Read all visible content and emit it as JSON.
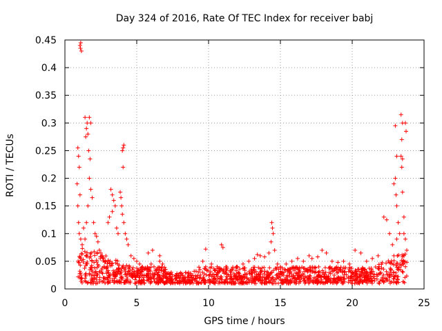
{
  "chart_data": {
    "type": "scatter",
    "title": "Day 324 of 2016, Rate Of TEC Index for receiver babj",
    "xlabel": "GPS time / hours",
    "ylabel": "ROTI / TECUs",
    "xlim": [
      0,
      25
    ],
    "ylim": [
      0,
      0.45
    ],
    "xticks": [
      0,
      5,
      10,
      15,
      20,
      25
    ],
    "xtick_labels": [
      "0",
      "5",
      "10",
      "15",
      "20",
      "25"
    ],
    "yticks": [
      0,
      0.05,
      0.1,
      0.15,
      0.2,
      0.25,
      0.3,
      0.35,
      0.4,
      0.45
    ],
    "ytick_labels": [
      "0",
      "0.05",
      "0.1",
      "0.15",
      "0.2",
      "0.25",
      "0.3",
      "0.35",
      "0.4",
      "0.45"
    ],
    "grid": true,
    "marker": "+",
    "color": "#ff0000",
    "series": [
      {
        "name": "ROTI",
        "points": [
          [
            1.05,
            0.44
          ],
          [
            1.08,
            0.435
          ],
          [
            1.1,
            0.445
          ],
          [
            1.15,
            0.43
          ],
          [
            0.9,
            0.255
          ],
          [
            0.95,
            0.24
          ],
          [
            0.85,
            0.19
          ],
          [
            0.9,
            0.15
          ],
          [
            0.95,
            0.12
          ],
          [
            1.0,
            0.1
          ],
          [
            1.1,
            0.09
          ],
          [
            1.2,
            0.08
          ],
          [
            1.0,
            0.22
          ],
          [
            1.05,
            0.17
          ],
          [
            1.4,
            0.31
          ],
          [
            1.5,
            0.29
          ],
          [
            1.55,
            0.3
          ],
          [
            1.6,
            0.28
          ],
          [
            1.45,
            0.275
          ],
          [
            1.65,
            0.25
          ],
          [
            1.7,
            0.31
          ],
          [
            1.75,
            0.235
          ],
          [
            1.8,
            0.3
          ],
          [
            1.7,
            0.2
          ],
          [
            1.8,
            0.18
          ],
          [
            1.9,
            0.165
          ],
          [
            1.6,
            0.15
          ],
          [
            1.5,
            0.12
          ],
          [
            1.3,
            0.11
          ],
          [
            1.4,
            0.09
          ],
          [
            2.0,
            0.12
          ],
          [
            2.1,
            0.1
          ],
          [
            2.2,
            0.095
          ],
          [
            2.3,
            0.085
          ],
          [
            2.4,
            0.07
          ],
          [
            2.5,
            0.065
          ],
          [
            2.6,
            0.06
          ],
          [
            2.7,
            0.055
          ],
          [
            2.8,
            0.05
          ],
          [
            3.2,
            0.18
          ],
          [
            3.3,
            0.17
          ],
          [
            3.4,
            0.16
          ],
          [
            3.5,
            0.15
          ],
          [
            3.3,
            0.14
          ],
          [
            3.1,
            0.13
          ],
          [
            3.0,
            0.12
          ],
          [
            3.6,
            0.11
          ],
          [
            3.7,
            0.1
          ],
          [
            3.85,
            0.175
          ],
          [
            3.9,
            0.165
          ],
          [
            3.95,
            0.15
          ],
          [
            4.0,
            0.135
          ],
          [
            4.1,
            0.12
          ],
          [
            4.05,
            0.255
          ],
          [
            4.0,
            0.25
          ],
          [
            4.1,
            0.26
          ],
          [
            4.05,
            0.22
          ],
          [
            4.2,
            0.1
          ],
          [
            4.3,
            0.09
          ],
          [
            4.4,
            0.08
          ],
          [
            4.6,
            0.06
          ],
          [
            4.8,
            0.055
          ],
          [
            5.0,
            0.05
          ],
          [
            5.2,
            0.045
          ],
          [
            5.4,
            0.04
          ],
          [
            5.6,
            0.038
          ],
          [
            5.8,
            0.035
          ],
          [
            6.0,
            0.045
          ],
          [
            6.2,
            0.04
          ],
          [
            6.4,
            0.035
          ],
          [
            6.6,
            0.05
          ],
          [
            6.8,
            0.045
          ],
          [
            7.0,
            0.035
          ],
          [
            5.8,
            0.065
          ],
          [
            6.1,
            0.07
          ],
          [
            6.6,
            0.06
          ],
          [
            7.4,
            0.03
          ],
          [
            7.8,
            0.028
          ],
          [
            8.2,
            0.025
          ],
          [
            8.6,
            0.03
          ],
          [
            9.0,
            0.032
          ],
          [
            9.4,
            0.035
          ],
          [
            9.8,
            0.04
          ],
          [
            9.6,
            0.05
          ],
          [
            9.8,
            0.072
          ],
          [
            10.2,
            0.045
          ],
          [
            10.6,
            0.04
          ],
          [
            10.9,
            0.08
          ],
          [
            11.0,
            0.075
          ],
          [
            11.2,
            0.04
          ],
          [
            11.6,
            0.035
          ],
          [
            12.0,
            0.04
          ],
          [
            12.4,
            0.045
          ],
          [
            12.8,
            0.05
          ],
          [
            13.2,
            0.055
          ],
          [
            13.6,
            0.06
          ],
          [
            13.4,
            0.062
          ],
          [
            13.9,
            0.058
          ],
          [
            14.2,
            0.065
          ],
          [
            14.4,
            0.12
          ],
          [
            14.45,
            0.11
          ],
          [
            14.5,
            0.1
          ],
          [
            14.35,
            0.085
          ],
          [
            14.6,
            0.07
          ],
          [
            14.8,
            0.045
          ],
          [
            15.0,
            0.04
          ],
          [
            15.4,
            0.045
          ],
          [
            15.8,
            0.05
          ],
          [
            16.2,
            0.055
          ],
          [
            16.6,
            0.05
          ],
          [
            17.0,
            0.06
          ],
          [
            17.2,
            0.055
          ],
          [
            17.6,
            0.058
          ],
          [
            17.9,
            0.07
          ],
          [
            18.2,
            0.065
          ],
          [
            18.6,
            0.05
          ],
          [
            19.0,
            0.048
          ],
          [
            19.4,
            0.05
          ],
          [
            19.8,
            0.045
          ],
          [
            20.2,
            0.07
          ],
          [
            20.6,
            0.065
          ],
          [
            21.0,
            0.05
          ],
          [
            21.4,
            0.055
          ],
          [
            21.8,
            0.06
          ],
          [
            22.2,
            0.13
          ],
          [
            22.4,
            0.125
          ],
          [
            22.6,
            0.1
          ],
          [
            22.8,
            0.08
          ],
          [
            22.9,
            0.06
          ],
          [
            23.0,
            0.295
          ],
          [
            23.1,
            0.24
          ],
          [
            23.0,
            0.2
          ],
          [
            22.9,
            0.19
          ],
          [
            23.05,
            0.17
          ],
          [
            23.1,
            0.15
          ],
          [
            23.2,
            0.12
          ],
          [
            23.3,
            0.1
          ],
          [
            23.1,
            0.09
          ],
          [
            23.4,
            0.315
          ],
          [
            23.5,
            0.3
          ],
          [
            23.45,
            0.27
          ],
          [
            23.4,
            0.24
          ],
          [
            23.5,
            0.235
          ],
          [
            23.45,
            0.22
          ],
          [
            23.5,
            0.175
          ],
          [
            23.6,
            0.13
          ],
          [
            23.7,
            0.3
          ],
          [
            23.75,
            0.285
          ],
          [
            23.6,
            0.1
          ],
          [
            23.7,
            0.09
          ],
          [
            23.8,
            0.07
          ],
          [
            23.6,
            0.06
          ]
        ],
        "baseline_band": {
          "comment": "Dense scatter band of points near the floor across the whole day",
          "x_range": [
            0.9,
            23.8
          ],
          "typical_min": 0.01,
          "typical_max": 0.04
        }
      }
    ]
  }
}
